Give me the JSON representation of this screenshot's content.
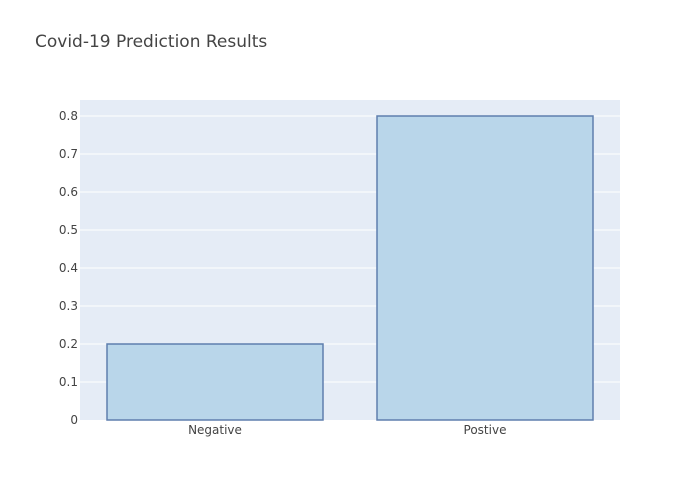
{
  "chart_data": {
    "type": "bar",
    "title": "Covid-19 Prediction Results",
    "categories": [
      "Negative",
      "Postive"
    ],
    "values": [
      0.2,
      0.8
    ],
    "ylim": [
      0,
      0.8
    ],
    "yticks": [
      0,
      0.1,
      0.2,
      0.3,
      0.4,
      0.5,
      0.6,
      0.7,
      0.8
    ],
    "ytick_labels": [
      "0",
      "0.1",
      "0.2",
      "0.3",
      "0.4",
      "0.5",
      "0.6",
      "0.7",
      "0.8"
    ],
    "xlabel": "",
    "ylabel": "",
    "grid": true,
    "legend": false
  },
  "colors": {
    "plot_background": "#e5ecf6",
    "grid": "#ffffff",
    "bar_fill": "#b9d6ea",
    "bar_stroke": "#5f7fae",
    "text": "#444444"
  }
}
